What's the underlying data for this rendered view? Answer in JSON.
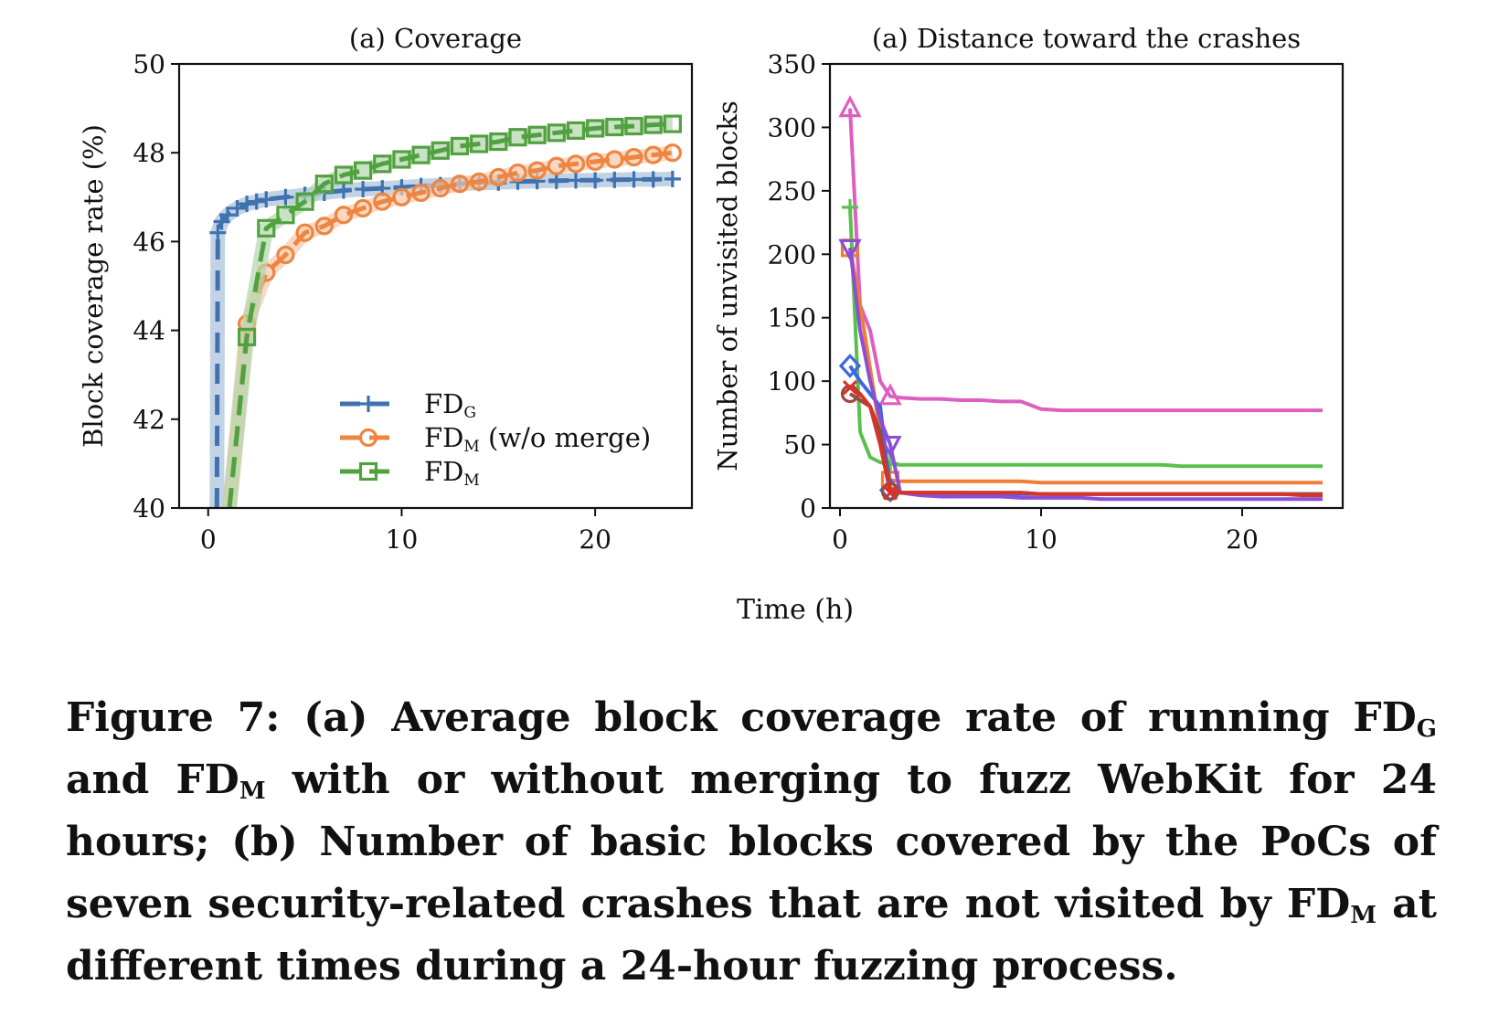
{
  "chart_data": [
    {
      "type": "line",
      "title": "(a) Coverage",
      "xlabel": "",
      "ylabel": "Block coverage rate (%)",
      "xlim": [
        -1.5,
        25
      ],
      "ylim": [
        40,
        50
      ],
      "xticks": [
        0,
        10,
        20
      ],
      "yticks": [
        40,
        42,
        44,
        46,
        48,
        50
      ],
      "legend_position": "lower-right",
      "series": [
        {
          "name": "FD",
          "sub": "G",
          "color": "#3f72ae",
          "marker": "plus",
          "x": [
            0.45,
            0.5,
            0.7,
            1,
            1.5,
            2,
            2.5,
            3,
            4,
            5,
            6,
            7,
            8,
            9,
            10,
            11,
            12,
            13,
            14,
            15,
            16,
            17,
            18,
            19,
            20,
            21,
            22,
            23,
            24
          ],
          "y": [
            40,
            46.2,
            46.45,
            46.6,
            46.75,
            46.85,
            46.9,
            46.95,
            47.0,
            47.05,
            47.1,
            47.15,
            47.18,
            47.2,
            47.22,
            47.25,
            47.27,
            47.3,
            47.32,
            47.33,
            47.35,
            47.36,
            47.37,
            47.38,
            47.38,
            47.39,
            47.4,
            47.4,
            47.41
          ]
        },
        {
          "name": "FD",
          "sub": "M",
          "suffix": " (w/o merge)",
          "color": "#ee8540",
          "marker": "circle",
          "x": [
            1.1,
            2,
            3,
            4,
            5,
            6,
            7,
            8,
            9,
            10,
            11,
            12,
            13,
            14,
            15,
            16,
            17,
            18,
            19,
            20,
            21,
            22,
            23,
            24
          ],
          "y": [
            40,
            44.15,
            45.3,
            45.7,
            46.2,
            46.35,
            46.6,
            46.75,
            46.9,
            47.0,
            47.1,
            47.2,
            47.3,
            47.35,
            47.45,
            47.55,
            47.6,
            47.7,
            47.75,
            47.8,
            47.85,
            47.9,
            47.95,
            48.0
          ]
        },
        {
          "name": "FD",
          "sub": "M",
          "color": "#52a140",
          "marker": "square",
          "x": [
            1.1,
            2,
            3,
            4,
            5,
            6,
            7,
            8,
            9,
            10,
            11,
            12,
            13,
            14,
            15,
            16,
            17,
            18,
            19,
            20,
            21,
            22,
            23,
            24
          ],
          "y": [
            40,
            43.85,
            46.3,
            46.6,
            46.9,
            47.3,
            47.5,
            47.6,
            47.75,
            47.85,
            47.95,
            48.05,
            48.15,
            48.2,
            48.25,
            48.35,
            48.4,
            48.45,
            48.5,
            48.55,
            48.58,
            48.6,
            48.63,
            48.65
          ]
        }
      ]
    },
    {
      "type": "line",
      "title": "(a) Distance toward the crashes",
      "xlabel": "Time (h)",
      "ylabel": "Number of unvisited blocks",
      "xlim": [
        -0.5,
        25
      ],
      "ylim": [
        0,
        350
      ],
      "xticks": [
        0,
        10,
        20
      ],
      "yticks": [
        0,
        50,
        100,
        150,
        200,
        250,
        300,
        350
      ],
      "series": [
        {
          "color": "#dd5fc0",
          "marker": "triangle",
          "x": [
            0.5,
            1,
            1.5,
            2,
            2.5,
            3,
            4,
            5,
            6,
            7,
            8,
            9,
            10,
            11,
            12,
            13,
            14,
            15,
            16,
            17,
            18,
            19,
            20,
            21,
            22,
            23,
            24
          ],
          "y": [
            315,
            160,
            140,
            100,
            88,
            87,
            86,
            86,
            85,
            85,
            84,
            84,
            78,
            77,
            77,
            77,
            77,
            77,
            77,
            77,
            77,
            77,
            77,
            77,
            77,
            77,
            77
          ]
        },
        {
          "color": "#5ac04c",
          "marker": "plus",
          "x": [
            0.5,
            1,
            1.5,
            2,
            2.5,
            3,
            4,
            5,
            6,
            7,
            8,
            9,
            10,
            11,
            12,
            13,
            14,
            15,
            16,
            17,
            18,
            19,
            20,
            21,
            22,
            23,
            24
          ],
          "y": [
            237,
            60,
            40,
            36,
            35,
            34,
            34,
            34,
            34,
            34,
            34,
            34,
            34,
            34,
            34,
            34,
            34,
            34,
            34,
            33,
            33,
            33,
            33,
            33,
            33,
            33,
            33
          ]
        },
        {
          "color": "#f07d35",
          "marker": "square",
          "x": [
            0.5,
            1,
            1.5,
            2,
            2.5,
            3,
            4,
            5,
            6,
            7,
            8,
            9,
            10,
            11,
            12,
            13,
            14,
            15,
            16,
            17,
            18,
            19,
            20,
            21,
            22,
            23,
            24
          ],
          "y": [
            205,
            160,
            110,
            60,
            22,
            21,
            21,
            21,
            21,
            21,
            21,
            21,
            20,
            20,
            20,
            20,
            20,
            20,
            20,
            20,
            20,
            20,
            20,
            20,
            20,
            20,
            20
          ]
        },
        {
          "color": "#3d67e0",
          "marker": "diamond",
          "x": [
            0.5,
            1,
            1.5,
            2,
            2.5,
            3,
            4,
            5,
            6,
            7,
            8,
            9,
            10,
            11,
            12,
            13,
            14,
            15,
            16,
            17,
            18,
            19,
            20,
            21,
            22,
            23,
            24
          ],
          "y": [
            112,
            100,
            90,
            80,
            14,
            12,
            12,
            12,
            12,
            11,
            11,
            11,
            11,
            11,
            11,
            11,
            11,
            11,
            11,
            11,
            11,
            11,
            11,
            11,
            11,
            11,
            11
          ]
        },
        {
          "color": "#8a4fd6",
          "marker": "triangle-down",
          "x": [
            0.5,
            1,
            1.5,
            2,
            2.5,
            3,
            4,
            5,
            6,
            7,
            8,
            9,
            10,
            11,
            12,
            13,
            14,
            15,
            16,
            17,
            18,
            19,
            20,
            21,
            22,
            23,
            24
          ],
          "y": [
            205,
            140,
            100,
            70,
            50,
            12,
            10,
            9,
            9,
            9,
            9,
            8,
            8,
            8,
            8,
            7,
            7,
            7,
            7,
            7,
            7,
            7,
            7,
            7,
            7,
            7,
            7
          ]
        },
        {
          "color": "#9a4a3a",
          "marker": "circle",
          "x": [
            0.5,
            1,
            1.5,
            2,
            2.5,
            3,
            4,
            5,
            6,
            7,
            8,
            9,
            10,
            11,
            12,
            13,
            14,
            15,
            16,
            17,
            18,
            19,
            20,
            21,
            22,
            23,
            24
          ],
          "y": [
            90,
            85,
            80,
            60,
            13,
            12,
            12,
            12,
            12,
            12,
            12,
            12,
            11,
            11,
            11,
            11,
            11,
            11,
            11,
            11,
            11,
            11,
            11,
            11,
            11,
            11,
            11
          ]
        },
        {
          "color": "#d8322c",
          "marker": "x",
          "x": [
            0.5,
            1,
            1.5,
            2,
            2.5,
            3,
            4,
            5,
            6,
            7,
            8,
            9,
            10,
            11,
            12,
            13,
            14,
            15,
            16,
            17,
            18,
            19,
            20,
            21,
            22,
            23,
            24
          ],
          "y": [
            95,
            90,
            80,
            50,
            12,
            12,
            12,
            12,
            12,
            12,
            12,
            12,
            11,
            11,
            11,
            11,
            11,
            11,
            11,
            11,
            11,
            11,
            11,
            11,
            11,
            10,
            10
          ]
        }
      ]
    }
  ],
  "caption": {
    "p1": "Figure 7: (a) Average block coverage rate of running FD",
    "s1": "G",
    "p2": " and FD",
    "s2": "M",
    "p3": " with or without merging to fuzz WebKit for 24 hours; (b) Number of basic blocks covered by the PoCs of seven security-related crashes that are not visited by FD",
    "s3": "M",
    "p4": " at different times during a 24-hour fuzzing process."
  }
}
